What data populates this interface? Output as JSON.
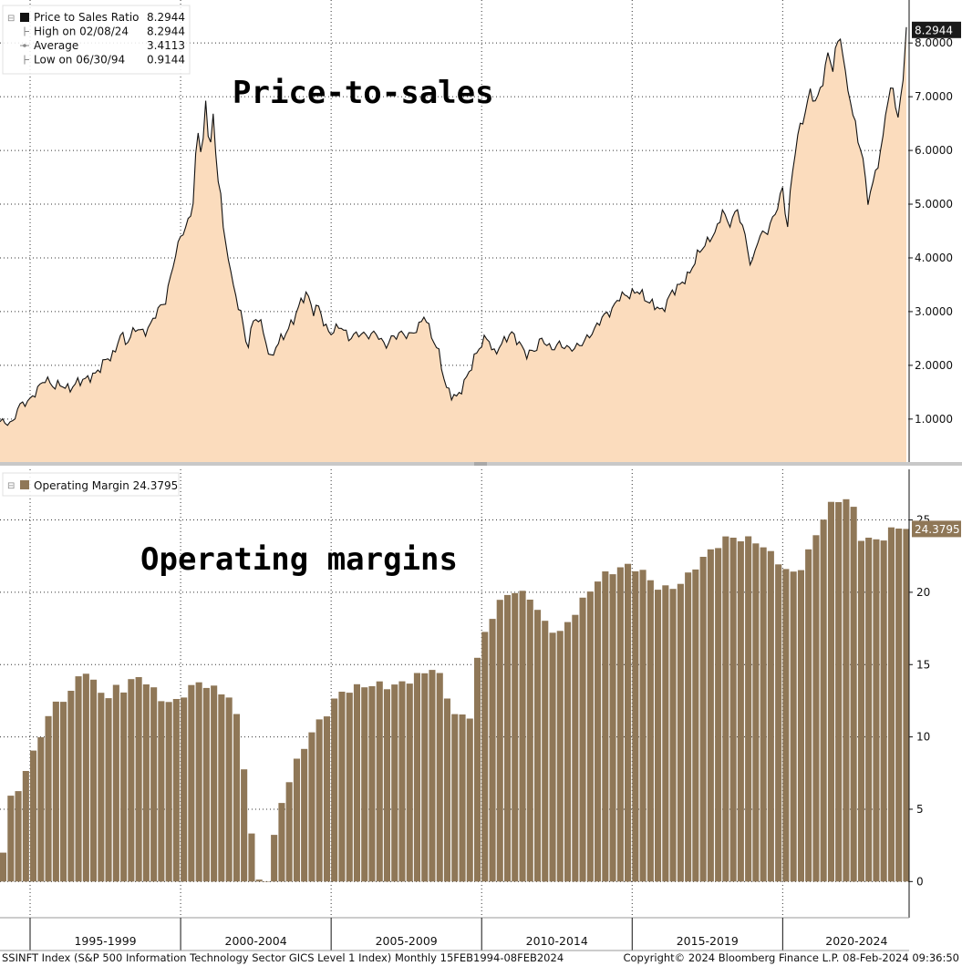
{
  "colors": {
    "area_fill": "#fbdcbd",
    "line": "#111111",
    "bar": "#8f7757",
    "grid": "#333333",
    "divider": "#c8c8c8",
    "current_box_top": "#1a1a1a",
    "current_box_bottom": "#8f7757"
  },
  "footer": {
    "left": "SSINFT Index (S&P 500 Information Technology Sector GICS Level 1 Index)  Monthly 15FEB1994-08FEB2024",
    "right": "Copyright© 2024 Bloomberg Finance L.P.      08-Feb-2024 09:36:50"
  },
  "chart_data": [
    {
      "type": "area",
      "name": "price_to_sales",
      "annotation": "Price-to-sales",
      "legend": [
        {
          "label": "Price to Sales Ratio",
          "value": "8.2944",
          "icon": "filled-square-icon"
        },
        {
          "label": "High on 02/08/24",
          "value": "8.2944",
          "icon": "tick-icon"
        },
        {
          "label": "Average",
          "value": "3.4113",
          "icon": "dot-icon"
        },
        {
          "label": "Low on 06/30/94",
          "value": "0.9144",
          "icon": "tick-icon"
        }
      ],
      "current_value_label": "8.2944",
      "current_value": 8.2944,
      "ylim": [
        0.2,
        8.8
      ],
      "yticks": [
        1,
        2,
        3,
        4,
        5,
        6,
        7,
        8
      ],
      "ytick_labels": [
        "1.0000",
        "2.0000",
        "3.0000",
        "4.0000",
        "5.0000",
        "6.0000",
        "7.0000",
        "8.0000"
      ],
      "x_start": 1994.0,
      "x_end": 2024.2,
      "anchors": [
        [
          1994.0,
          0.95
        ],
        [
          1994.3,
          0.93
        ],
        [
          1994.45,
          0.91
        ],
        [
          1994.55,
          1.2
        ],
        [
          1994.8,
          1.3
        ],
        [
          1995.0,
          1.35
        ],
        [
          1995.3,
          1.6
        ],
        [
          1995.5,
          1.75
        ],
        [
          1995.8,
          1.6
        ],
        [
          1996.0,
          1.65
        ],
        [
          1996.3,
          1.55
        ],
        [
          1996.6,
          1.7
        ],
        [
          1996.9,
          1.75
        ],
        [
          1997.2,
          1.85
        ],
        [
          1997.5,
          2.1
        ],
        [
          1997.8,
          2.2
        ],
        [
          1998.0,
          2.6
        ],
        [
          1998.2,
          2.4
        ],
        [
          1998.5,
          2.7
        ],
        [
          1998.8,
          2.6
        ],
        [
          1999.0,
          2.75
        ],
        [
          1999.2,
          3.0
        ],
        [
          1999.5,
          3.2
        ],
        [
          1999.8,
          4.0
        ],
        [
          2000.0,
          4.4
        ],
        [
          2000.2,
          4.6
        ],
        [
          2000.4,
          4.9
        ],
        [
          2000.55,
          6.4
        ],
        [
          2000.7,
          5.9
        ],
        [
          2000.85,
          6.98
        ],
        [
          2000.95,
          5.9
        ],
        [
          2001.1,
          6.8
        ],
        [
          2001.2,
          5.4
        ],
        [
          2001.3,
          5.5
        ],
        [
          2001.45,
          4.3
        ],
        [
          2001.6,
          4.0
        ],
        [
          2001.8,
          3.3
        ],
        [
          2002.0,
          3.0
        ],
        [
          2002.2,
          2.3
        ],
        [
          2002.4,
          2.8
        ],
        [
          2002.6,
          2.9
        ],
        [
          2002.8,
          2.5
        ],
        [
          2003.0,
          2.1
        ],
        [
          2003.2,
          2.4
        ],
        [
          2003.5,
          2.6
        ],
        [
          2003.8,
          2.9
        ],
        [
          2004.0,
          3.2
        ],
        [
          2004.2,
          3.35
        ],
        [
          2004.4,
          3.0
        ],
        [
          2004.6,
          3.1
        ],
        [
          2004.8,
          2.7
        ],
        [
          2005.0,
          2.6
        ],
        [
          2005.3,
          2.75
        ],
        [
          2005.6,
          2.5
        ],
        [
          2005.9,
          2.6
        ],
        [
          2006.2,
          2.55
        ],
        [
          2006.5,
          2.6
        ],
        [
          2006.8,
          2.35
        ],
        [
          2007.0,
          2.5
        ],
        [
          2007.3,
          2.6
        ],
        [
          2007.6,
          2.55
        ],
        [
          2007.9,
          2.7
        ],
        [
          2008.1,
          2.95
        ],
        [
          2008.3,
          2.6
        ],
        [
          2008.6,
          2.2
        ],
        [
          2008.8,
          1.6
        ],
        [
          2009.0,
          1.45
        ],
        [
          2009.2,
          1.4
        ],
        [
          2009.4,
          1.65
        ],
        [
          2009.6,
          1.9
        ],
        [
          2009.8,
          2.2
        ],
        [
          2010.0,
          2.4
        ],
        [
          2010.2,
          2.55
        ],
        [
          2010.4,
          2.2
        ],
        [
          2010.6,
          2.35
        ],
        [
          2010.8,
          2.5
        ],
        [
          2011.0,
          2.6
        ],
        [
          2011.2,
          2.45
        ],
        [
          2011.5,
          2.2
        ],
        [
          2011.8,
          2.3
        ],
        [
          2012.0,
          2.5
        ],
        [
          2012.3,
          2.3
        ],
        [
          2012.6,
          2.4
        ],
        [
          2012.9,
          2.3
        ],
        [
          2013.2,
          2.35
        ],
        [
          2013.5,
          2.5
        ],
        [
          2013.8,
          2.7
        ],
        [
          2014.0,
          2.9
        ],
        [
          2014.3,
          3.0
        ],
        [
          2014.6,
          3.3
        ],
        [
          2014.9,
          3.3
        ],
        [
          2015.2,
          3.4
        ],
        [
          2015.5,
          3.2
        ],
        [
          2015.8,
          3.1
        ],
        [
          2016.0,
          3.0
        ],
        [
          2016.3,
          3.35
        ],
        [
          2016.6,
          3.5
        ],
        [
          2016.9,
          3.7
        ],
        [
          2017.2,
          4.1
        ],
        [
          2017.5,
          4.3
        ],
        [
          2017.8,
          4.5
        ],
        [
          2018.0,
          4.9
        ],
        [
          2018.2,
          4.6
        ],
        [
          2018.5,
          4.9
        ],
        [
          2018.8,
          4.3
        ],
        [
          2018.95,
          3.8
        ],
        [
          2019.2,
          4.4
        ],
        [
          2019.5,
          4.5
        ],
        [
          2019.8,
          4.9
        ],
        [
          2020.0,
          5.3
        ],
        [
          2020.15,
          4.5
        ],
        [
          2020.3,
          5.5
        ],
        [
          2020.5,
          6.3
        ],
        [
          2020.7,
          6.6
        ],
        [
          2020.9,
          7.1
        ],
        [
          2021.1,
          6.9
        ],
        [
          2021.3,
          7.2
        ],
        [
          2021.5,
          7.8
        ],
        [
          2021.65,
          7.5
        ],
        [
          2021.8,
          8.0
        ],
        [
          2021.95,
          8.1
        ],
        [
          2022.1,
          7.3
        ],
        [
          2022.3,
          6.8
        ],
        [
          2022.5,
          6.2
        ],
        [
          2022.7,
          5.8
        ],
        [
          2022.8,
          5.0
        ],
        [
          2022.95,
          5.3
        ],
        [
          2023.1,
          5.6
        ],
        [
          2023.3,
          6.1
        ],
        [
          2023.5,
          7.0
        ],
        [
          2023.65,
          7.2
        ],
        [
          2023.8,
          6.6
        ],
        [
          2023.95,
          7.0
        ],
        [
          2024.05,
          7.6
        ],
        [
          2024.11,
          8.2944
        ]
      ]
    },
    {
      "type": "bar",
      "name": "operating_margin",
      "annotation": "Operating margins",
      "legend": [
        {
          "label": "Operating Margin",
          "value": "24.3795",
          "icon": "filled-square-icon"
        }
      ],
      "current_value_label": "24.3795",
      "current_value": 24.3795,
      "ylim": [
        -2.5,
        28.5
      ],
      "yticks": [
        0,
        5,
        10,
        15,
        20,
        25
      ],
      "ytick_labels": [
        "0",
        "5",
        "10",
        "15",
        "20",
        "25"
      ],
      "x_start": 1994.0,
      "x_end": 2024.2,
      "anchors": [
        [
          1994.0,
          2.0
        ],
        [
          1994.3,
          6.5
        ],
        [
          1994.6,
          6.5
        ],
        [
          1994.9,
          8.5
        ],
        [
          1995.2,
          10.0
        ],
        [
          1995.5,
          11.2
        ],
        [
          1995.8,
          12.8
        ],
        [
          1996.1,
          12.4
        ],
        [
          1996.4,
          13.5
        ],
        [
          1996.6,
          15.3
        ],
        [
          1996.8,
          14.0
        ],
        [
          1997.0,
          13.8
        ],
        [
          1997.3,
          13.2
        ],
        [
          1997.5,
          12.5
        ],
        [
          1997.8,
          13.8
        ],
        [
          1998.1,
          13.0
        ],
        [
          1998.4,
          14.5
        ],
        [
          1998.7,
          13.8
        ],
        [
          1999.0,
          13.2
        ],
        [
          1999.3,
          12.6
        ],
        [
          1999.6,
          12.2
        ],
        [
          1999.9,
          12.8
        ],
        [
          2000.2,
          13.3
        ],
        [
          2000.5,
          13.8
        ],
        [
          2000.8,
          13.5
        ],
        [
          2001.1,
          13.2
        ],
        [
          2001.4,
          13.0
        ],
        [
          2001.6,
          12.5
        ],
        [
          2001.8,
          11.0
        ],
        [
          2002.0,
          8.0
        ],
        [
          2002.2,
          4.0
        ],
        [
          2002.4,
          0.8
        ],
        [
          2002.6,
          -0.7
        ],
        [
          2002.8,
          0.5
        ],
        [
          2003.0,
          3.0
        ],
        [
          2003.2,
          5.2
        ],
        [
          2003.5,
          7.0
        ],
        [
          2003.8,
          8.5
        ],
        [
          2004.1,
          9.8
        ],
        [
          2004.4,
          10.8
        ],
        [
          2004.7,
          11.5
        ],
        [
          2005.0,
          12.5
        ],
        [
          2005.3,
          13.2
        ],
        [
          2005.6,
          13.3
        ],
        [
          2005.9,
          13.5
        ],
        [
          2006.2,
          13.6
        ],
        [
          2006.5,
          13.6
        ],
        [
          2006.8,
          13.5
        ],
        [
          2007.1,
          13.6
        ],
        [
          2007.4,
          13.8
        ],
        [
          2007.7,
          14.2
        ],
        [
          2008.0,
          14.4
        ],
        [
          2008.3,
          14.9
        ],
        [
          2008.6,
          13.8
        ],
        [
          2008.9,
          11.8
        ],
        [
          2009.2,
          11.3
        ],
        [
          2009.5,
          11.5
        ],
        [
          2009.7,
          15.0
        ],
        [
          2009.9,
          16.5
        ],
        [
          2010.1,
          17.8
        ],
        [
          2010.4,
          19.0
        ],
        [
          2010.7,
          19.8
        ],
        [
          2011.0,
          20.1
        ],
        [
          2011.3,
          19.8
        ],
        [
          2011.6,
          19.6
        ],
        [
          2011.9,
          18.0
        ],
        [
          2012.2,
          17.5
        ],
        [
          2012.5,
          17.2
        ],
        [
          2012.8,
          18.0
        ],
        [
          2013.1,
          19.0
        ],
        [
          2013.4,
          19.8
        ],
        [
          2013.7,
          20.8
        ],
        [
          2014.0,
          21.2
        ],
        [
          2014.3,
          21.5
        ],
        [
          2014.6,
          21.8
        ],
        [
          2014.9,
          21.8
        ],
        [
          2015.2,
          21.5
        ],
        [
          2015.5,
          20.8
        ],
        [
          2015.8,
          20.3
        ],
        [
          2016.1,
          20.2
        ],
        [
          2016.4,
          20.5
        ],
        [
          2016.7,
          21.0
        ],
        [
          2017.0,
          21.8
        ],
        [
          2017.3,
          22.5
        ],
        [
          2017.6,
          23.0
        ],
        [
          2017.9,
          23.6
        ],
        [
          2018.2,
          23.8
        ],
        [
          2018.5,
          23.7
        ],
        [
          2018.8,
          23.6
        ],
        [
          2019.1,
          23.5
        ],
        [
          2019.4,
          22.8
        ],
        [
          2019.7,
          22.3
        ],
        [
          2020.0,
          21.5
        ],
        [
          2020.3,
          21.3
        ],
        [
          2020.6,
          22.0
        ],
        [
          2020.9,
          23.5
        ],
        [
          2021.2,
          25.0
        ],
        [
          2021.5,
          26.0
        ],
        [
          2021.8,
          26.5
        ],
        [
          2022.1,
          26.4
        ],
        [
          2022.3,
          25.5
        ],
        [
          2022.5,
          23.8
        ],
        [
          2022.8,
          23.6
        ],
        [
          2023.1,
          23.6
        ],
        [
          2023.4,
          24.0
        ],
        [
          2023.6,
          24.5
        ],
        [
          2023.9,
          24.5
        ],
        [
          2024.1,
          24.3795
        ]
      ]
    }
  ],
  "x_axis": {
    "labels": [
      {
        "label": "1995-1999",
        "start": 1995,
        "end": 2000
      },
      {
        "label": "2000-2004",
        "start": 2000,
        "end": 2005
      },
      {
        "label": "2005-2009",
        "start": 2005,
        "end": 2010
      },
      {
        "label": "2010-2014",
        "start": 2010,
        "end": 2015
      },
      {
        "label": "2015-2019",
        "start": 2015,
        "end": 2020
      },
      {
        "label": "2020-2024",
        "start": 2020,
        "end": 2025
      }
    ],
    "gridlines": [
      1995,
      2000,
      2005,
      2010,
      2015,
      2020
    ]
  }
}
